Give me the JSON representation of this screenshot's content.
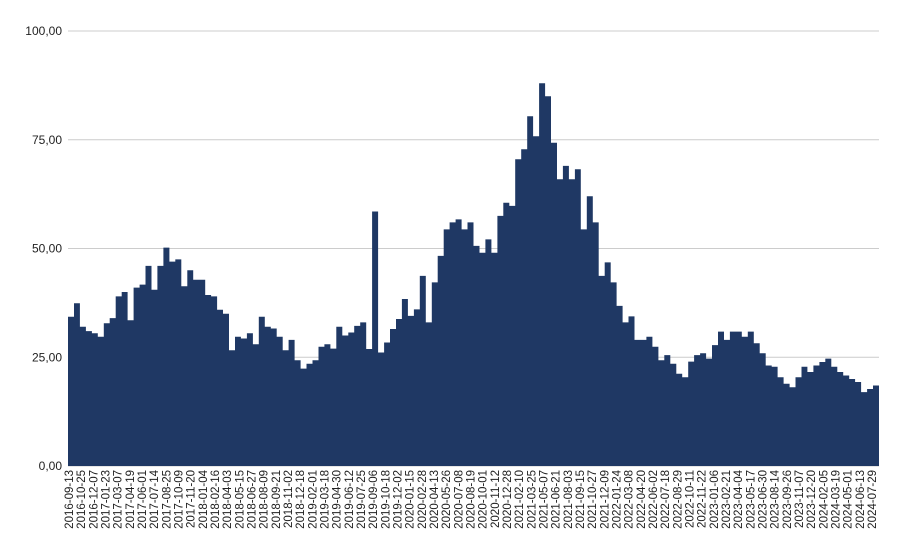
{
  "chart_data": {
    "type": "area",
    "title": "",
    "xlabel": "",
    "ylabel": "",
    "ylim": [
      0,
      100
    ],
    "grid": true,
    "legend": "none",
    "color": "#1f3864",
    "y_ticks": [
      "0,00",
      "25,00",
      "50,00",
      "75,00",
      "100,00"
    ],
    "y_tick_values": [
      0,
      25,
      50,
      75,
      100
    ],
    "x_ticks": [
      "2016-09-13",
      "2016-10-25",
      "2016-12-07",
      "2017-01-23",
      "2017-03-07",
      "2017-04-19",
      "2017-06-01",
      "2017-07-14",
      "2017-08-25",
      "2017-10-09",
      "2017-11-20",
      "2018-01-04",
      "2018-02-16",
      "2018-04-03",
      "2018-05-15",
      "2018-06-27",
      "2018-08-09",
      "2018-09-21",
      "2018-11-02",
      "2018-12-18",
      "2019-02-01",
      "2019-03-18",
      "2019-04-30",
      "2019-06-12",
      "2019-07-25",
      "2019-09-06",
      "2019-10-18",
      "2019-12-02",
      "2020-01-15",
      "2020-02-28",
      "2020-04-13",
      "2020-05-26",
      "2020-07-08",
      "2020-08-19",
      "2020-10-01",
      "2020-11-12",
      "2020-12-28",
      "2021-02-10",
      "2021-03-25",
      "2021-05-07",
      "2021-06-21",
      "2021-08-03",
      "2021-09-15",
      "2021-10-27",
      "2021-12-09",
      "2022-01-24",
      "2022-03-08",
      "2022-04-20",
      "2022-06-02",
      "2022-07-18",
      "2022-08-29",
      "2022-10-11",
      "2022-11-22",
      "2023-01-06",
      "2023-02-21",
      "2023-04-04",
      "2023-05-17",
      "2023-06-30",
      "2023-08-14",
      "2023-09-26",
      "2023-11-07",
      "2023-12-20",
      "2024-02-05",
      "2024-03-19",
      "2024-05-01",
      "2024-06-13",
      "2024-07-29"
    ],
    "values": [
      34.3,
      37.4,
      32,
      31,
      30.5,
      29.7,
      32.8,
      34,
      39,
      40,
      33.5,
      41,
      41.7,
      46,
      40.5,
      46,
      50.2,
      47,
      47.5,
      41.3,
      45,
      42.8,
      42.8,
      39.3,
      39,
      35.9,
      35,
      26.6,
      29.7,
      29.3,
      30.5,
      28,
      34.3,
      32,
      31.6,
      29.7,
      26.6,
      29,
      24.3,
      22.4,
      23.5,
      24.3,
      27.4,
      28,
      27,
      32,
      30,
      30.7,
      32.2,
      33,
      26.9,
      58.5,
      26.1,
      28.4,
      31.5,
      33.8,
      38.4,
      34.5,
      36,
      43.7,
      33,
      42.2,
      48.3,
      54.4,
      56,
      56.7,
      54.4,
      56,
      50.6,
      49,
      52.1,
      49,
      57.5,
      60.5,
      59.8,
      70.5,
      72.8,
      80.4,
      75.8,
      88,
      85,
      74.3,
      65.9,
      69,
      65.9,
      68.2,
      54.4,
      62,
      56,
      43.7,
      46.8,
      42.2,
      36.8,
      33,
      34.4,
      29,
      29,
      29.7,
      27.4,
      24.3,
      25.5,
      23.5,
      21.2,
      20.4,
      24,
      25.5,
      25.9,
      24.7,
      27.8,
      30.9,
      29,
      30.9,
      30.9,
      29.7,
      30.9,
      28.2,
      25.9,
      23.1,
      22.8,
      20.4,
      18.9,
      18.1,
      20.4,
      22.8,
      21.6,
      23.1,
      23.9,
      24.7,
      22.8,
      21.6,
      20.8,
      20,
      19.3,
      17,
      17.7,
      18.5
    ]
  }
}
